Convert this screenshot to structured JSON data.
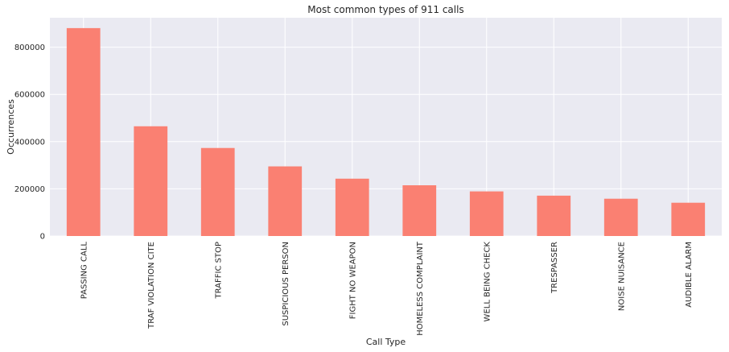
{
  "chart_data": {
    "type": "bar",
    "title": "Most common types of 911 calls",
    "xlabel": "Call Type",
    "ylabel": "Occurrences",
    "categories": [
      "PASSING CALL",
      "TRAF VIOLATION CITE",
      "TRAFFIC STOP",
      "SUSPICIOUS PERSON",
      "FIGHT NO WEAPON",
      "HOMELESS COMPLAINT",
      "WELL BEING CHECK",
      "TRESPASSER",
      "NOISE NUISANCE",
      "AUDIBLE ALARM"
    ],
    "values": [
      881000,
      465000,
      373000,
      295000,
      243000,
      215000,
      189000,
      171000,
      158000,
      141000
    ],
    "yticks": [
      0,
      200000,
      400000,
      600000,
      800000
    ],
    "ytick_labels": [
      "0",
      "200000",
      "400000",
      "600000",
      "800000"
    ],
    "ylim": [
      0,
      925000
    ],
    "grid": true,
    "colors": {
      "bar": "#fa8072",
      "background": "#eaeaf2",
      "grid": "#ffffff"
    }
  }
}
